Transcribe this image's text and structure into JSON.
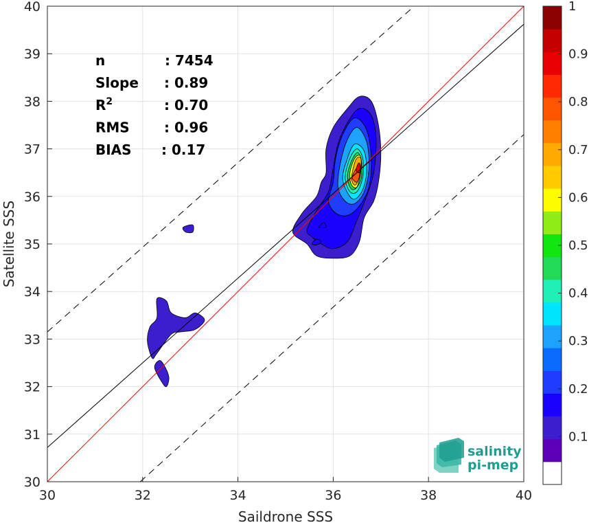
{
  "chart_data": {
    "type": "contour-scatter",
    "xlabel": "Saildrone SSS",
    "ylabel": "Satellite SSS",
    "xlim": [
      30,
      40
    ],
    "ylim": [
      30,
      40
    ],
    "x_ticks": [
      "30",
      "32",
      "34",
      "36",
      "38",
      "40"
    ],
    "y_ticks": [
      "30",
      "31",
      "32",
      "33",
      "34",
      "35",
      "36",
      "37",
      "38",
      "39",
      "40"
    ],
    "grid": true,
    "stats": [
      {
        "label": "n",
        "value": ": 7454"
      },
      {
        "label": "Slope",
        "value": ": 0.89"
      },
      {
        "label": "R",
        "sup": "2",
        "value": ": 0.70"
      },
      {
        "label": "RMS",
        "value": ": 0.96"
      },
      {
        "label": "BIAS",
        "value": ": 0.17"
      }
    ],
    "lines": {
      "identity": {
        "color": "#ff0000",
        "points": [
          [
            30,
            30
          ],
          [
            40,
            40
          ]
        ]
      },
      "regression": {
        "color": "#000000",
        "points": [
          [
            30,
            30.72
          ],
          [
            40,
            39.62
          ]
        ]
      },
      "upper_bound": {
        "color": "#000000",
        "dashed": true,
        "points": [
          [
            30,
            33.15
          ],
          [
            37.7,
            40
          ]
        ]
      },
      "lower_bound": {
        "color": "#000000",
        "dashed": true,
        "points": [
          [
            31.95,
            30
          ],
          [
            40,
            37.3
          ]
        ]
      }
    },
    "density_contours": [
      {
        "level": 0.05,
        "points": [
          [
            35.15,
            35.25
          ],
          [
            35.35,
            35.65
          ],
          [
            35.65,
            36.0
          ],
          [
            35.75,
            36.3
          ],
          [
            35.85,
            36.5
          ],
          [
            35.85,
            37.0
          ],
          [
            36.0,
            37.45
          ],
          [
            36.3,
            37.85
          ],
          [
            36.55,
            38.1
          ],
          [
            36.8,
            38.0
          ],
          [
            36.95,
            37.5
          ],
          [
            37.0,
            36.9
          ],
          [
            36.95,
            36.3
          ],
          [
            36.85,
            35.9
          ],
          [
            36.65,
            35.55
          ],
          [
            36.55,
            35.05
          ],
          [
            36.35,
            34.75
          ],
          [
            36.0,
            34.7
          ],
          [
            35.65,
            34.75
          ],
          [
            35.45,
            35.0
          ]
        ]
      },
      {
        "level": 0.05,
        "points": [
          [
            32.85,
            35.35
          ],
          [
            32.9,
            35.25
          ],
          [
            33.05,
            35.25
          ],
          [
            33.05,
            35.4
          ]
        ]
      },
      {
        "level": 0.05,
        "points": [
          [
            32.1,
            32.95
          ],
          [
            32.15,
            33.25
          ],
          [
            32.3,
            33.45
          ],
          [
            32.3,
            33.85
          ],
          [
            32.5,
            33.8
          ],
          [
            32.6,
            33.55
          ],
          [
            32.9,
            33.45
          ],
          [
            33.1,
            33.55
          ],
          [
            33.3,
            33.4
          ],
          [
            33.1,
            33.2
          ],
          [
            32.8,
            33.15
          ],
          [
            32.6,
            33.1
          ],
          [
            32.3,
            32.7
          ],
          [
            32.2,
            32.6
          ]
        ]
      },
      {
        "level": 0.05,
        "points": [
          [
            32.25,
            32.4
          ],
          [
            32.4,
            32.1
          ],
          [
            32.5,
            32.0
          ],
          [
            32.55,
            32.2
          ],
          [
            32.45,
            32.45
          ],
          [
            32.35,
            32.55
          ]
        ]
      },
      {
        "level": 0.1,
        "points": [
          [
            35.45,
            35.3
          ],
          [
            35.65,
            35.7
          ],
          [
            35.9,
            36.1
          ],
          [
            36.0,
            36.6
          ],
          [
            36.1,
            37.1
          ],
          [
            36.3,
            37.55
          ],
          [
            36.55,
            37.85
          ],
          [
            36.8,
            37.7
          ],
          [
            36.9,
            37.2
          ],
          [
            36.85,
            36.5
          ],
          [
            36.7,
            36.0
          ],
          [
            36.5,
            35.5
          ],
          [
            36.3,
            35.05
          ],
          [
            36.0,
            34.9
          ],
          [
            35.75,
            35.0
          ],
          [
            35.55,
            35.15
          ]
        ]
      },
      {
        "level": 0.2,
        "points": [
          [
            35.9,
            35.9
          ],
          [
            36.0,
            36.3
          ],
          [
            36.05,
            36.8
          ],
          [
            36.2,
            37.3
          ],
          [
            36.45,
            37.65
          ],
          [
            36.7,
            37.4
          ],
          [
            36.8,
            36.8
          ],
          [
            36.75,
            36.2
          ],
          [
            36.55,
            35.8
          ],
          [
            36.3,
            35.6
          ],
          [
            36.05,
            35.65
          ]
        ]
      },
      {
        "level": 0.3,
        "points": [
          [
            36.1,
            36.2
          ],
          [
            36.15,
            36.7
          ],
          [
            36.3,
            37.2
          ],
          [
            36.5,
            37.45
          ],
          [
            36.7,
            37.15
          ],
          [
            36.75,
            36.6
          ],
          [
            36.65,
            36.1
          ],
          [
            36.45,
            35.85
          ],
          [
            36.25,
            35.9
          ]
        ]
      },
      {
        "level": 0.4,
        "points": [
          [
            36.2,
            36.35
          ],
          [
            36.3,
            36.8
          ],
          [
            36.45,
            37.1
          ],
          [
            36.65,
            36.95
          ],
          [
            36.7,
            36.5
          ],
          [
            36.6,
            36.1
          ],
          [
            36.4,
            35.95
          ]
        ]
      },
      {
        "level": 0.5,
        "points": [
          [
            36.25,
            36.4
          ],
          [
            36.35,
            36.8
          ],
          [
            36.5,
            37.0
          ],
          [
            36.62,
            36.8
          ],
          [
            36.62,
            36.4
          ],
          [
            36.5,
            36.1
          ],
          [
            36.35,
            36.1
          ]
        ]
      },
      {
        "level": 0.6,
        "points": [
          [
            36.3,
            36.45
          ],
          [
            36.4,
            36.78
          ],
          [
            36.52,
            36.92
          ],
          [
            36.6,
            36.7
          ],
          [
            36.58,
            36.35
          ],
          [
            36.45,
            36.15
          ],
          [
            36.35,
            36.2
          ]
        ]
      },
      {
        "level": 0.7,
        "points": [
          [
            36.35,
            36.5
          ],
          [
            36.45,
            36.8
          ],
          [
            36.57,
            36.85
          ],
          [
            36.58,
            36.55
          ],
          [
            36.5,
            36.2
          ],
          [
            36.38,
            36.25
          ]
        ]
      },
      {
        "level": 0.8,
        "points": [
          [
            36.4,
            36.5
          ],
          [
            36.48,
            36.78
          ],
          [
            36.58,
            36.8
          ],
          [
            36.57,
            36.5
          ],
          [
            36.48,
            36.25
          ],
          [
            36.4,
            36.3
          ]
        ]
      },
      {
        "level": 0.85,
        "points": [
          [
            36.4,
            36.4
          ],
          [
            36.5,
            36.6
          ],
          [
            36.56,
            36.5
          ],
          [
            36.5,
            36.3
          ]
        ]
      },
      {
        "level": 0.9,
        "points": [
          [
            36.48,
            36.55
          ],
          [
            36.53,
            36.7
          ],
          [
            36.57,
            36.65
          ],
          [
            36.55,
            36.5
          ]
        ]
      },
      {
        "level": 0.1,
        "points": [
          [
            35.55,
            35.0
          ],
          [
            35.65,
            35.1
          ],
          [
            35.75,
            35.05
          ],
          [
            35.65,
            34.98
          ]
        ]
      },
      {
        "level": 0.1,
        "points": [
          [
            35.7,
            35.35
          ],
          [
            35.8,
            35.45
          ],
          [
            35.85,
            35.35
          ]
        ]
      }
    ],
    "colorbar": {
      "range": [
        0,
        1
      ],
      "ticks": [
        "0.1",
        "0.2",
        "0.3",
        "0.4",
        "0.5",
        "0.6",
        "0.7",
        "0.8",
        "0.9",
        "1"
      ],
      "colors": [
        "#ffffff",
        "#5b00b8",
        "#3d1ecc",
        "#1a00ff",
        "#1f3cff",
        "#0c6bff",
        "#1ea2ff",
        "#00e5ff",
        "#21f0b4",
        "#22d958",
        "#12e610",
        "#90ed18",
        "#fdfd00",
        "#ffcc00",
        "#ffaa00",
        "#ff8000",
        "#ff5500",
        "#ff2a00",
        "#e60000",
        "#c40000",
        "#8b0000"
      ]
    },
    "level_colors": {
      "0.05": "#3d1ecc",
      "0.1": "#1a00ff",
      "0.2": "#1f3cff",
      "0.3": "#1ea2ff",
      "0.4": "#00e5ff",
      "0.5": "#21f0b4",
      "0.6": "#22d958",
      "0.7": "#fdfd00",
      "0.8": "#ffaa00",
      "0.85": "#ff5500",
      "0.9": "#e60000"
    }
  },
  "logo": {
    "line1": "salinity",
    "line2": "pi-mep"
  }
}
